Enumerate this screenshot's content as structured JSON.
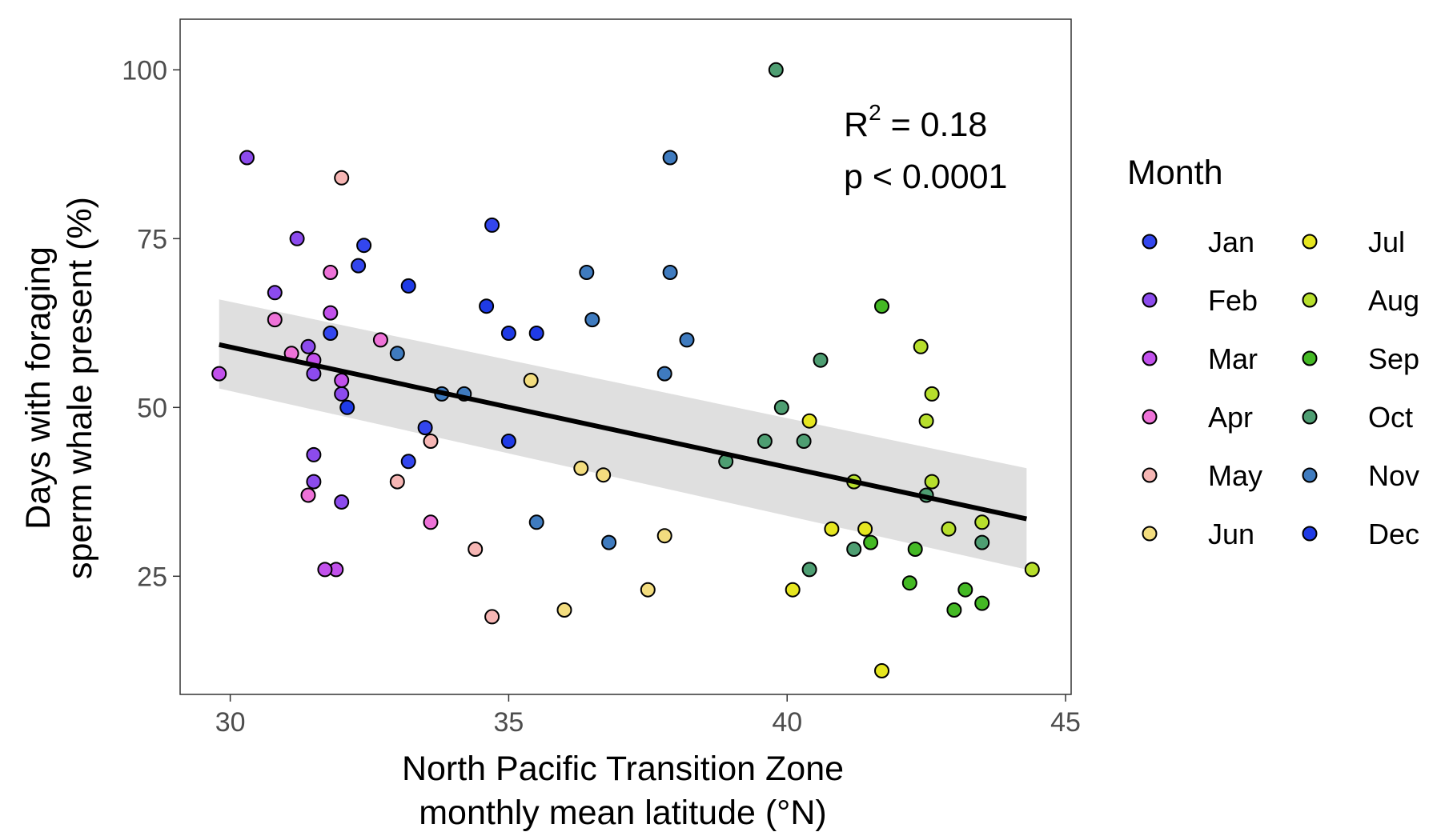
{
  "chart_data": {
    "type": "scatter",
    "ylabel_lines": [
      "Days with foraging",
      "sperm whale present (%)"
    ],
    "xlabel_lines": [
      "North Pacific Transition Zone",
      "monthly mean latitude (°N)"
    ],
    "xlim": [
      29.1,
      45.1
    ],
    "ylim": [
      7.5,
      107.5
    ],
    "x_ticks": [
      30,
      35,
      40,
      45
    ],
    "y_ticks": [
      25,
      50,
      75,
      100
    ],
    "x_tick_labels": [
      "30",
      "35",
      "40",
      "45"
    ],
    "y_tick_labels": [
      "25",
      "50",
      "75",
      "100"
    ],
    "grid": false,
    "legend": {
      "title": "Month",
      "position": "right",
      "columns": 2,
      "entries": [
        {
          "label": "Jan",
          "color": "#3346ee"
        },
        {
          "label": "Feb",
          "color": "#8c4bed"
        },
        {
          "label": "Mar",
          "color": "#c251ec"
        },
        {
          "label": "Apr",
          "color": "#ee72d8"
        },
        {
          "label": "May",
          "color": "#f6b6b4"
        },
        {
          "label": "Jun",
          "color": "#f3dd7f"
        },
        {
          "label": "Jul",
          "color": "#e6e620"
        },
        {
          "label": "Aug",
          "color": "#b7df2c"
        },
        {
          "label": "Sep",
          "color": "#44b924"
        },
        {
          "label": "Oct",
          "color": "#4e9e72"
        },
        {
          "label": "Nov",
          "color": "#3f7bbf"
        },
        {
          "label": "Dec",
          "color": "#1f3be6"
        }
      ]
    },
    "annotation": {
      "r2_label": "R",
      "r2_sup": "2",
      "r2_value": " = 0.18",
      "p_text": "p < 0.0001"
    },
    "regression": {
      "x": [
        29.8,
        44.3
      ],
      "y": [
        59.3,
        33.5
      ],
      "ci_upper": [
        66.0,
        41.0
      ],
      "ci_lower": [
        52.8,
        26.0
      ],
      "line_color": "#000000",
      "band_color": "#d9d9d9"
    },
    "series": [
      {
        "name": "Jan",
        "x": [
          32.4,
          32.3,
          33.5,
          33.2,
          31.8,
          34.7
        ],
        "y": [
          74,
          71,
          47,
          42,
          61,
          77
        ]
      },
      {
        "name": "Feb",
        "x": [
          30.3,
          31.2,
          30.8,
          31.5,
          32.0,
          31.5,
          31.5,
          32.0,
          31.4
        ],
        "y": [
          87,
          75,
          67,
          43,
          36,
          39,
          55,
          52,
          59
        ]
      },
      {
        "name": "Mar",
        "x": [
          31.8,
          31.9,
          31.7,
          29.8,
          32.0,
          31.5
        ],
        "y": [
          64,
          26,
          26,
          55,
          54,
          57
        ]
      },
      {
        "name": "Apr",
        "x": [
          31.8,
          32.7,
          30.8,
          31.4,
          33.6,
          31.1
        ],
        "y": [
          70,
          60,
          63,
          37,
          33,
          58
        ]
      },
      {
        "name": "May",
        "x": [
          32.0,
          33.0,
          33.6,
          34.4,
          34.7
        ],
        "y": [
          84,
          39,
          45,
          29,
          19
        ]
      },
      {
        "name": "Jun",
        "x": [
          35.4,
          36.3,
          36.7,
          37.8,
          37.5,
          36.0
        ],
        "y": [
          54,
          41,
          40,
          31,
          23,
          20
        ]
      },
      {
        "name": "Jul",
        "x": [
          40.4,
          40.8,
          41.4,
          40.1,
          41.7
        ],
        "y": [
          48,
          32,
          32,
          23,
          11
        ]
      },
      {
        "name": "Aug",
        "x": [
          42.4,
          42.6,
          42.5,
          41.2,
          43.5,
          44.4,
          42.9,
          42.6
        ],
        "y": [
          59,
          52,
          48,
          39,
          33,
          26,
          32,
          39
        ]
      },
      {
        "name": "Sep",
        "x": [
          41.7,
          41.5,
          42.3,
          42.2,
          43.2,
          43.0,
          43.5
        ],
        "y": [
          65,
          30,
          29,
          24,
          23,
          20,
          21
        ]
      },
      {
        "name": "Oct",
        "x": [
          39.8,
          40.6,
          39.9,
          39.6,
          40.3,
          38.9,
          41.2,
          40.4,
          42.5,
          43.5
        ],
        "y": [
          100,
          57,
          50,
          45,
          45,
          42,
          29,
          26,
          37,
          30
        ]
      },
      {
        "name": "Nov",
        "x": [
          37.9,
          36.4,
          37.9,
          36.5,
          38.2,
          37.8,
          35.5,
          36.8,
          33.8,
          34.2,
          33.0
        ],
        "y": [
          87,
          70,
          70,
          63,
          60,
          55,
          33,
          30,
          52,
          52,
          58
        ]
      },
      {
        "name": "Dec",
        "x": [
          33.2,
          34.6,
          35.0,
          35.5,
          35.0,
          32.1
        ],
        "y": [
          68,
          65,
          61,
          61,
          45,
          50
        ]
      }
    ]
  }
}
